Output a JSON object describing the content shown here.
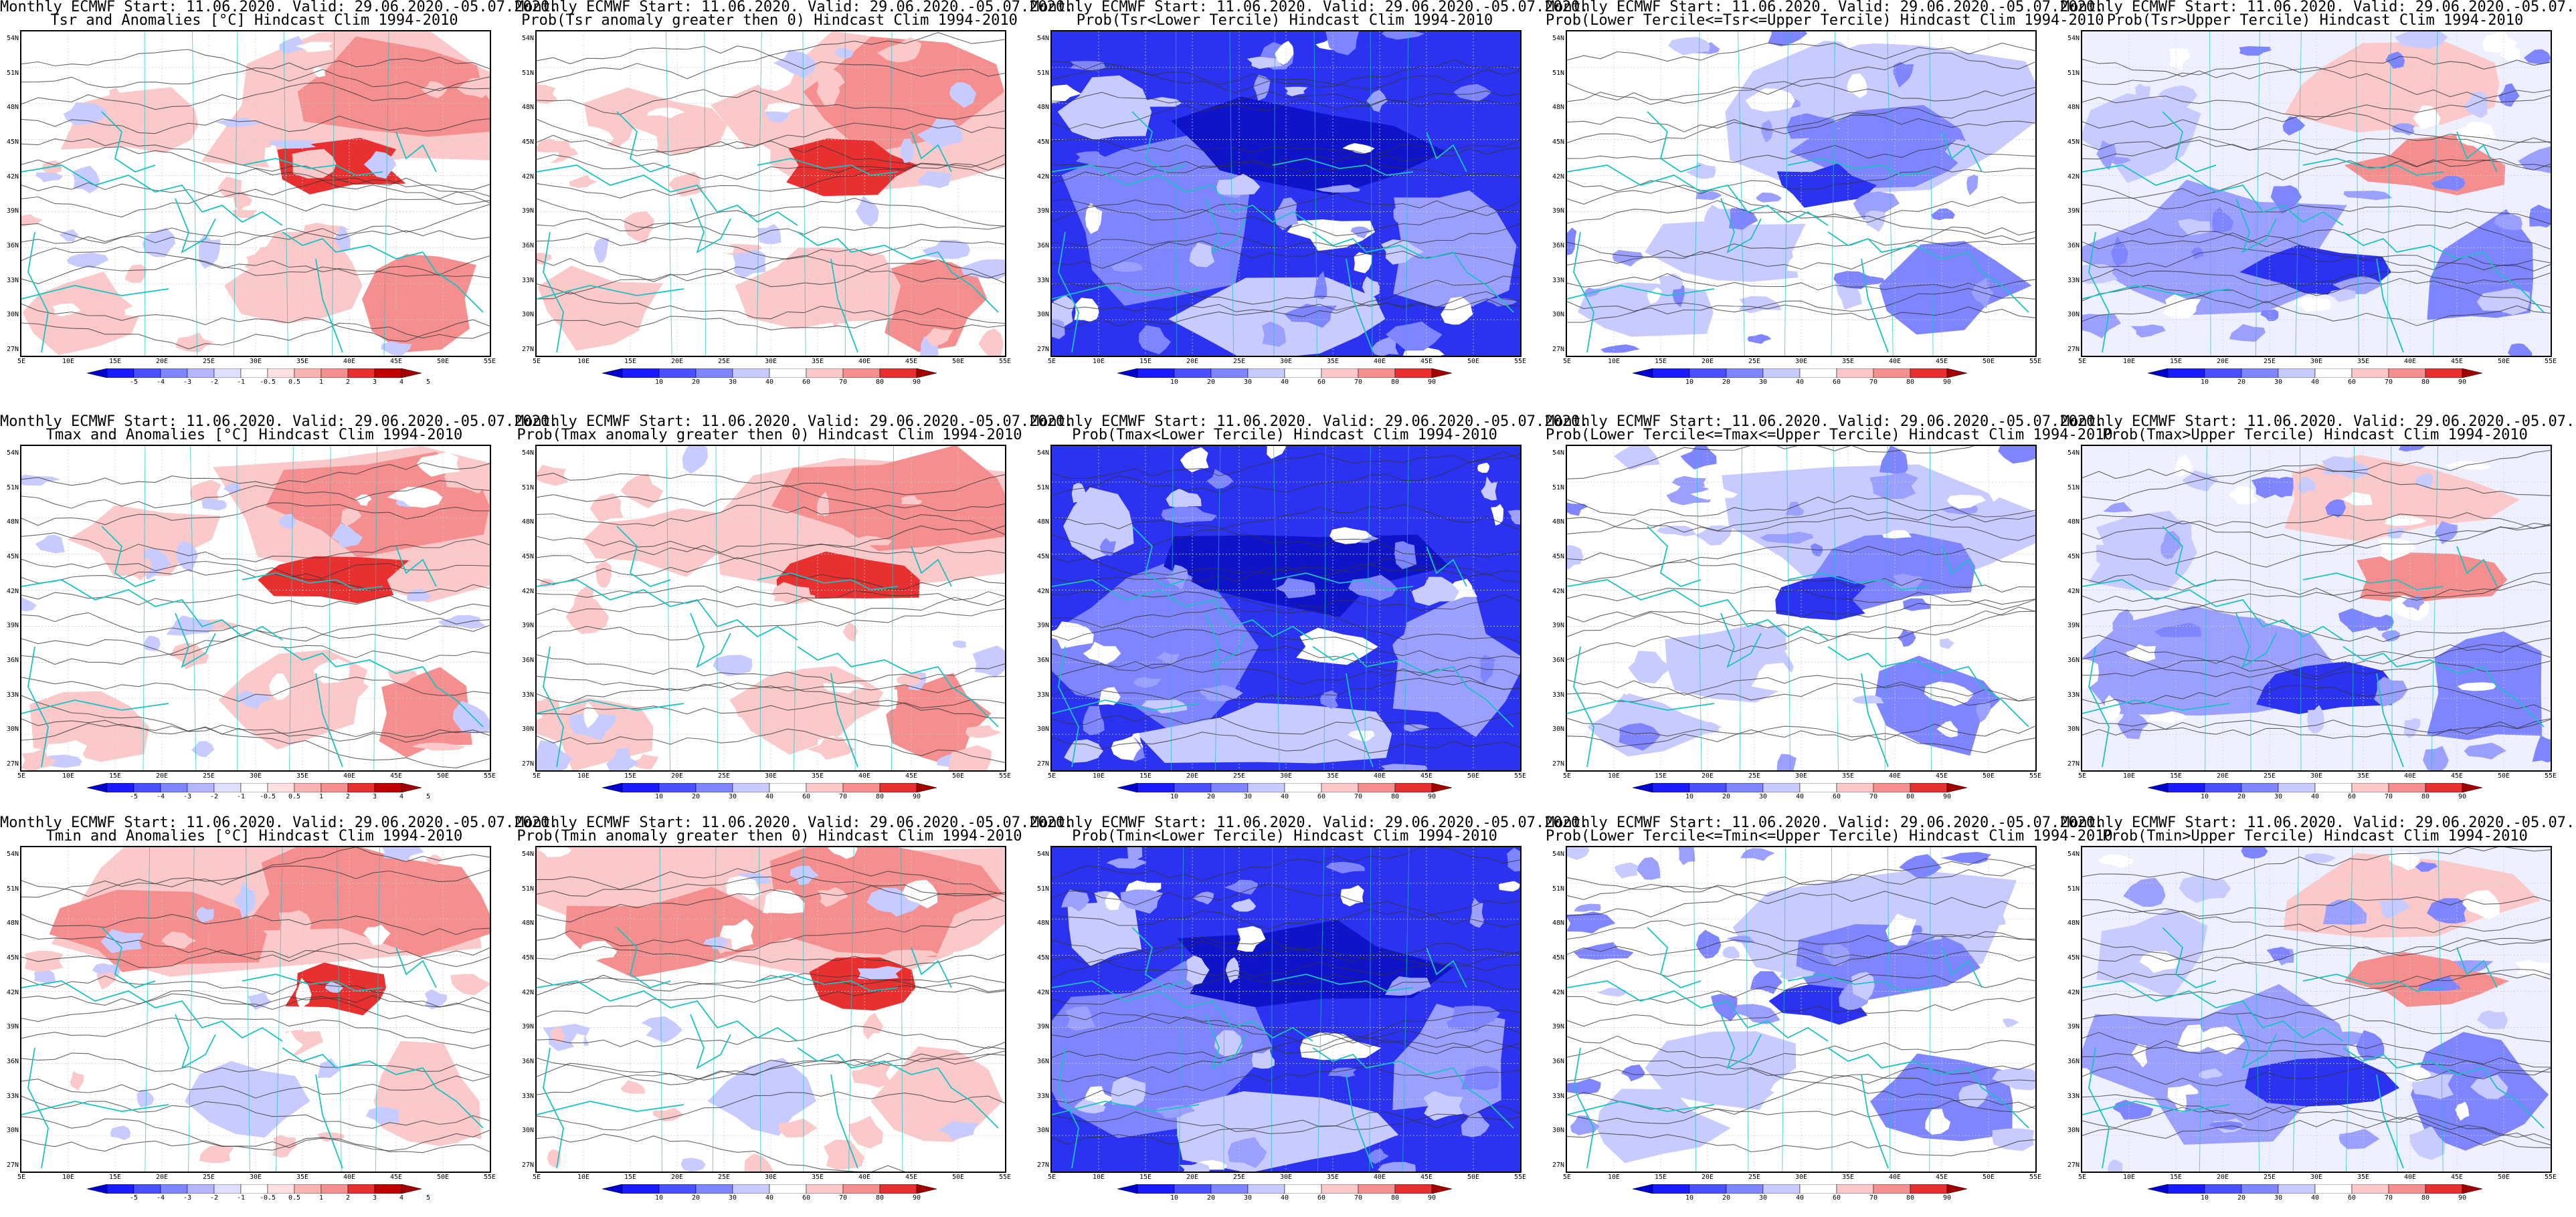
{
  "common_title": "Monthly ECMWF Start: 11.06.2020. Valid: 29.06.2020.-05.07.2020.",
  "lat_labels": [
    "54N",
    "51N",
    "48N",
    "45N",
    "42N",
    "39N",
    "36N",
    "33N",
    "30N",
    "27N"
  ],
  "lon_labels": [
    "5E",
    "10E",
    "15E",
    "20E",
    "25E",
    "30E",
    "35E",
    "40E",
    "45E",
    "50E",
    "55E"
  ],
  "anom_ticks": [
    "-5",
    "-4",
    "-3",
    "-2",
    "-1",
    "-0.5",
    "0.5",
    "1",
    "2",
    "3",
    "4",
    "5"
  ],
  "prob_ticks": [
    "10",
    "20",
    "30",
    "40",
    "60",
    "70",
    "80",
    "90"
  ],
  "colors": {
    "coast": "#19c2c2",
    "contour": "#333333",
    "warm": "#e8202a",
    "cold": "#1a1aff"
  },
  "rows": [
    {
      "var": "Tsr",
      "panels": [
        {
          "subtitle": "Tsr and Anomalies [°C] Hindcast Clim 1994-2010",
          "kind": "anom",
          "scheme": "warm-east"
        },
        {
          "subtitle": "Prob(Tsr anomaly greater then 0) Hindcast Clim 1994-2010",
          "kind": "prob",
          "scheme": "warm-east"
        },
        {
          "subtitle": "Prob(Tsr<Lower Tercile) Hindcast Clim 1994-2010",
          "kind": "prob",
          "scheme": "blue-full"
        },
        {
          "subtitle": "Prob(Lower Tercile<=Tsr<=Upper Tercile) Hindcast Clim 1994-2010",
          "kind": "prob",
          "scheme": "blue-mid"
        },
        {
          "subtitle": "Prob(Tsr>Upper Tercile) Hindcast Clim 1994-2010",
          "kind": "prob",
          "scheme": "blue-mix"
        }
      ]
    },
    {
      "var": "Tmax",
      "panels": [
        {
          "subtitle": "Tmax and Anomalies [°C] Hindcast Clim 1994-2010",
          "kind": "anom",
          "scheme": "warm-east"
        },
        {
          "subtitle": "Prob(Tmax anomaly greater then 0) Hindcast Clim 1994-2010",
          "kind": "prob",
          "scheme": "warm-east"
        },
        {
          "subtitle": "Prob(Tmax<Lower Tercile) Hindcast Clim 1994-2010",
          "kind": "prob",
          "scheme": "blue-full"
        },
        {
          "subtitle": "Prob(Lower Tercile<=Tmax<=Upper Tercile) Hindcast Clim 1994-2010",
          "kind": "prob",
          "scheme": "blue-mid"
        },
        {
          "subtitle": "Prob(Tmax>Upper Tercile) Hindcast Clim 1994-2010",
          "kind": "prob",
          "scheme": "blue-mix"
        }
      ]
    },
    {
      "var": "Tmin",
      "panels": [
        {
          "subtitle": "Tmin and Anomalies [°C] Hindcast Clim 1994-2010",
          "kind": "anom",
          "scheme": "warm-north"
        },
        {
          "subtitle": "Prob(Tmin anomaly greater then 0) Hindcast Clim 1994-2010",
          "kind": "prob",
          "scheme": "warm-north"
        },
        {
          "subtitle": "Prob(Tmin<Lower Tercile) Hindcast Clim 1994-2010",
          "kind": "prob",
          "scheme": "blue-full"
        },
        {
          "subtitle": "Prob(Lower Tercile<=Tmin<=Upper Tercile) Hindcast Clim 1994-2010",
          "kind": "prob",
          "scheme": "blue-mid"
        },
        {
          "subtitle": "Prob(Tmin>Upper Tercile) Hindcast Clim 1994-2010",
          "kind": "prob",
          "scheme": "blue-mix"
        }
      ]
    }
  ]
}
